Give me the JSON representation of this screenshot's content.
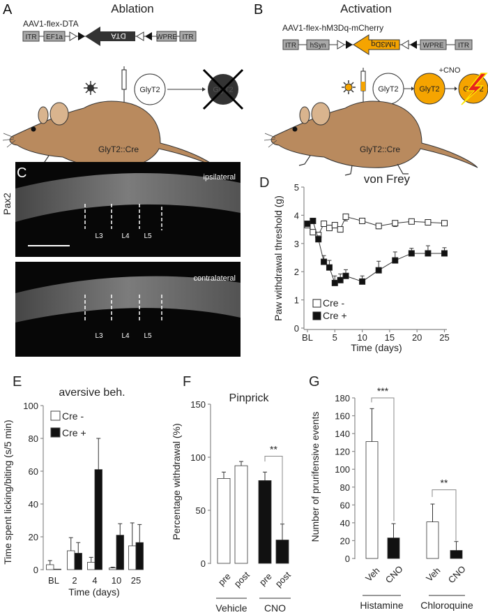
{
  "panelA": {
    "label": "A",
    "title": "Ablation",
    "construct": "AAV1-flex-DTA",
    "elements": [
      "ITR",
      "EF1a",
      "DTA",
      "WPRE",
      "ITR"
    ],
    "cell": "GlyT2",
    "cell_ablated": "GlyT2",
    "mouse": "GlyT2::Cre"
  },
  "panelB": {
    "label": "B",
    "title": "Activation",
    "construct": "AAV1-flex-hM3Dq-mCherry",
    "elements": [
      "ITR",
      "hSyn",
      "hM3Dq",
      "WPRE",
      "ITR"
    ],
    "cell": "GlyT2",
    "cell_active": "GlyT2",
    "cell_excited": "GlyT2",
    "drug": "+CNO",
    "mouse": "GlyT2::Cre"
  },
  "colors": {
    "orange": "#f5a400",
    "mouse": "#b98a5e",
    "black": "#111111"
  },
  "panelC": {
    "label": "C",
    "stain": "Pax2",
    "top": "ipsilateral",
    "bottom": "contralateral",
    "segments": [
      "L3",
      "L4",
      "L5"
    ]
  },
  "chart_data": [
    {
      "id": "D",
      "type": "line",
      "label": "D",
      "title": "von Frey",
      "xlabel": "Time (days)",
      "ylabel": "Paw withdrawal threshold (g)",
      "ylim": [
        0,
        5
      ],
      "yticks": [
        0,
        1,
        2,
        3,
        4,
        5
      ],
      "xlim": [
        0,
        25
      ],
      "xticks": [
        {
          "v": 0,
          "t": "BL"
        },
        {
          "v": 5,
          "t": "5"
        },
        {
          "v": 10,
          "t": "10"
        },
        {
          "v": 15,
          "t": "15"
        },
        {
          "v": 20,
          "t": "20"
        },
        {
          "v": 25,
          "t": "25"
        }
      ],
      "x": [
        0,
        1,
        2,
        3,
        4,
        5,
        6,
        7,
        10,
        13,
        16,
        19,
        22,
        25
      ],
      "series": [
        {
          "name": "Cre -",
          "fill": "#ffffff",
          "values": [
            3.65,
            3.4,
            3.3,
            3.7,
            3.55,
            3.65,
            3.5,
            3.95,
            3.8,
            3.62,
            3.72,
            3.78,
            3.75,
            3.72
          ],
          "errors": [
            0.05,
            0.08,
            0.08,
            0.05,
            0.08,
            0.06,
            0.08,
            0.15,
            0.05,
            0.1,
            0.12,
            0.05,
            0.06,
            0.05
          ]
        },
        {
          "name": "Cre +",
          "fill": "#111111",
          "values": [
            3.7,
            3.8,
            3.15,
            2.35,
            2.15,
            1.6,
            1.7,
            1.85,
            1.65,
            2.05,
            2.4,
            2.65,
            2.65,
            2.65
          ],
          "errors": [
            0.05,
            0.05,
            0.12,
            0.22,
            0.25,
            0.25,
            0.22,
            0.22,
            0.2,
            0.32,
            0.3,
            0.18,
            0.27,
            0.2
          ]
        }
      ],
      "legend": "bottom-left"
    },
    {
      "id": "E",
      "type": "bar",
      "label": "E",
      "title": "aversive beh.",
      "xlabel": "Time (days)",
      "ylabel": "Time spent licking/biting (s/5 min)",
      "ylim": [
        0,
        100
      ],
      "yticks": [
        0,
        20,
        40,
        60,
        80,
        100
      ],
      "categories": [
        "BL",
        "2",
        "4",
        "10",
        "25"
      ],
      "series": [
        {
          "name": "Cre -",
          "fill": "#ffffff",
          "values": [
            3,
            11.5,
            4.5,
            1,
            14.5
          ],
          "errors": [
            2.5,
            8,
            3,
            0.5,
            14
          ]
        },
        {
          "name": "Cre +",
          "fill": "#111111",
          "values": [
            0.3,
            10,
            61,
            21,
            16.5
          ],
          "errors": [
            0,
            6.5,
            19,
            7,
            11
          ]
        }
      ],
      "legend": "top-left"
    },
    {
      "id": "F",
      "type": "bar",
      "label": "F",
      "title": "Pinprick",
      "ylabel": "Percentage withdrawal (%)",
      "ylim": [
        0,
        150
      ],
      "yticks": [
        0,
        50,
        100,
        150
      ],
      "bars": [
        {
          "t": "pre",
          "v": 80,
          "e": 6,
          "fill": "#ffffff"
        },
        {
          "t": "post",
          "v": 92,
          "e": 4,
          "fill": "#ffffff"
        },
        {
          "t": "pre",
          "v": 78,
          "e": 8,
          "fill": "#111111"
        },
        {
          "t": "post",
          "v": 22,
          "e": 15,
          "fill": "#111111"
        }
      ],
      "groups": [
        "Vehicle",
        "CNO"
      ],
      "significance": "**"
    },
    {
      "id": "G",
      "type": "bar",
      "label": "G",
      "ylabel": "Number of prurifensive events",
      "ylim": [
        0,
        180
      ],
      "yticks": [
        0,
        20,
        40,
        60,
        80,
        100,
        120,
        140,
        160,
        180
      ],
      "bars": [
        {
          "t": "Veh",
          "v": 131,
          "e": 37,
          "fill": "#ffffff"
        },
        {
          "t": "CNO",
          "v": 23,
          "e": 16,
          "fill": "#111111"
        },
        {
          "t": "Veh",
          "v": 41,
          "e": 20,
          "fill": "#ffffff"
        },
        {
          "t": "CNO",
          "v": 9,
          "e": 10,
          "fill": "#111111"
        }
      ],
      "groups": [
        "Histamine",
        "Chloroquine"
      ],
      "significance": [
        "***",
        "**"
      ]
    }
  ]
}
